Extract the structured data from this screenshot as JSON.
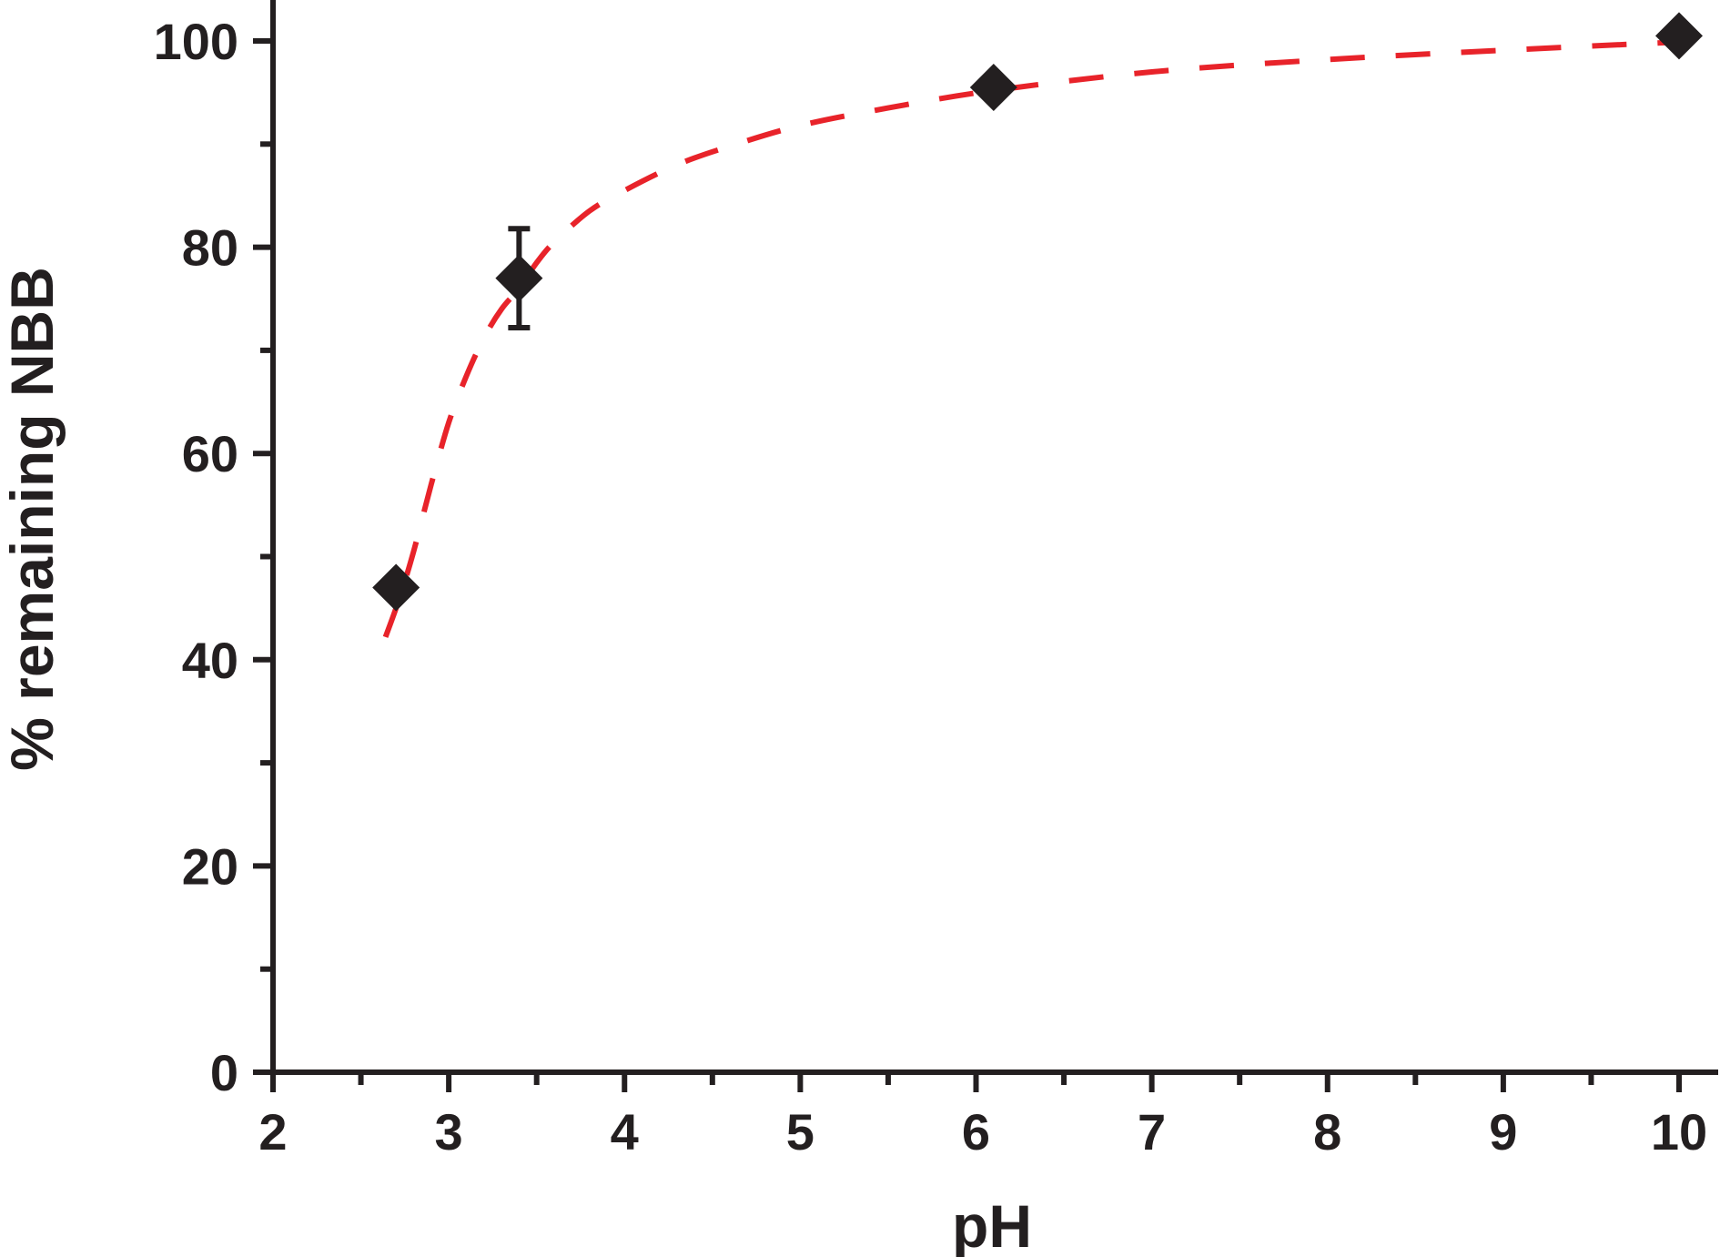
{
  "chart_data": {
    "type": "scatter",
    "title": "",
    "xlabel": "pH",
    "ylabel": "% remaining NBB",
    "xlim": [
      2,
      10.2
    ],
    "ylim": [
      0,
      100
    ],
    "xticks": [
      2,
      3,
      4,
      5,
      6,
      7,
      8,
      9,
      10
    ],
    "xtick_labels": [
      "2",
      "3",
      "4",
      "5",
      "6",
      "7",
      "8",
      "9",
      "10"
    ],
    "yticks": [
      0,
      20,
      40,
      60,
      80,
      100
    ],
    "ytick_labels": [
      "0",
      "20",
      "40",
      "60",
      "80",
      "100"
    ],
    "x_minor_step": 0.5,
    "y_minor_step": 10,
    "grid": false,
    "legend": "none",
    "series": [
      {
        "marker": "diamond",
        "color": "#231f20",
        "x": [
          2.7,
          3.4,
          6.1,
          10.0
        ],
        "y": [
          47,
          77,
          95.5,
          100.5
        ],
        "y_error": [
          0,
          4.8,
          0,
          0
        ]
      }
    ],
    "fit_curve": {
      "style": "dashed",
      "color": "#e8232a",
      "x": [
        2.64,
        2.72,
        2.8,
        2.9,
        3.0,
        3.1,
        3.2,
        3.3,
        3.4,
        3.5,
        3.6,
        3.8,
        4.0,
        4.3,
        4.6,
        5.0,
        5.5,
        6.1,
        7.0,
        8.0,
        9.0,
        10.0
      ],
      "y": [
        42.2,
        46.0,
        50.5,
        57.0,
        63.0,
        67.5,
        71.2,
        74.0,
        76.0,
        78.5,
        80.5,
        83.5,
        85.5,
        88.0,
        89.8,
        91.8,
        93.5,
        95.2,
        97.0,
        98.2,
        99.1,
        99.9
      ]
    }
  }
}
